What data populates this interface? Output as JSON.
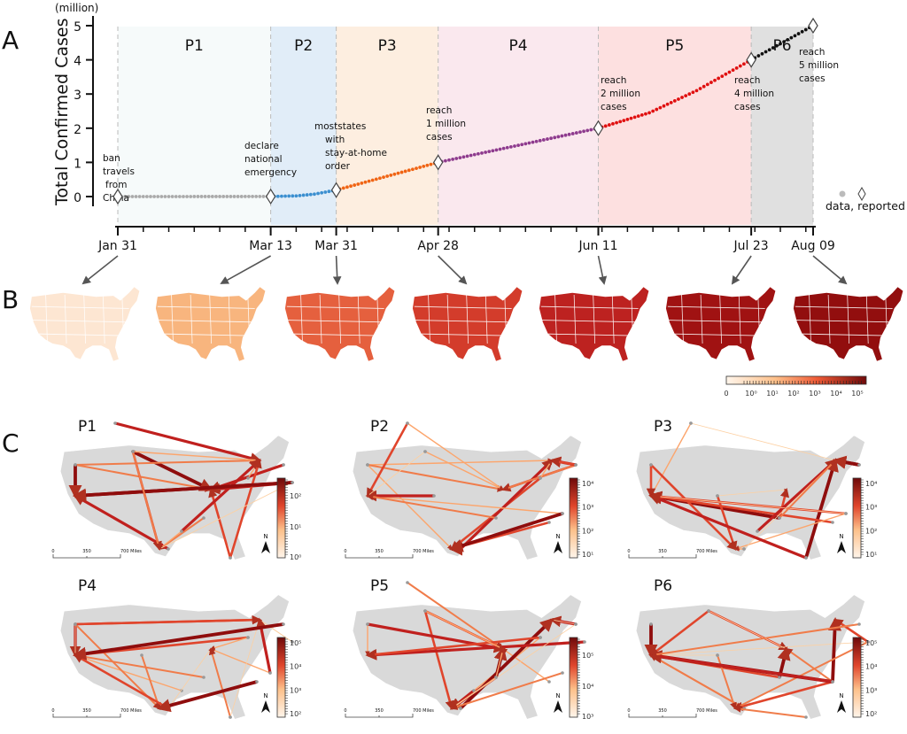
{
  "panels": {
    "a": "A",
    "b": "B",
    "c": "C"
  },
  "chart_data": {
    "type": "line",
    "ylabel": "Total Confirmed Cases",
    "yunit": "(million)",
    "ylim": [
      0,
      5
    ],
    "yticks": [
      "0",
      "1",
      "2",
      "3",
      "4",
      "5"
    ],
    "xtick_labels": [
      "Jan 31",
      "Mar 13",
      "Mar 31",
      "Apr 28",
      "Jun 11",
      "Jul 23",
      "Aug 09"
    ],
    "periods": [
      {
        "label": "P1",
        "start": "Jan 31",
        "end": "Mar 13",
        "bg": "#f6fafa",
        "color": "#aaaaaa"
      },
      {
        "label": "P2",
        "start": "Mar 13",
        "end": "Mar 31",
        "bg": "#e1edf8",
        "color": "#3b8fd0"
      },
      {
        "label": "P3",
        "start": "Mar 31",
        "end": "Apr 28",
        "bg": "#fdeee0",
        "color": "#f06414"
      },
      {
        "label": "P4",
        "start": "Apr 28",
        "end": "Jun 11",
        "bg": "#fae8ee",
        "color": "#8e3b8e"
      },
      {
        "label": "P5",
        "start": "Jun 11",
        "end": "Jul 23",
        "bg": "#fde0e0",
        "color": "#e01010"
      },
      {
        "label": "P6",
        "start": "Jul 23",
        "end": "Aug 09",
        "bg": "#e0e0e0",
        "color": "#111111"
      }
    ],
    "reported": [
      {
        "date": "Jan 31",
        "value": 0,
        "note": [
          "ban",
          "travels",
          "from",
          "China"
        ]
      },
      {
        "date": "Mar 13",
        "value": 0.002,
        "note": [
          "declare",
          "national",
          "emergency"
        ]
      },
      {
        "date": "Mar 31",
        "value": 0.19,
        "note": [
          "moststates",
          "with",
          "stay-at-home",
          "order"
        ]
      },
      {
        "date": "Apr 28",
        "value": 1.0,
        "note": [
          "reach",
          "1 million",
          "cases"
        ]
      },
      {
        "date": "Jun 11",
        "value": 2.0,
        "note": [
          "reach",
          "2 million",
          "cases"
        ]
      },
      {
        "date": "Jul 23",
        "value": 4.0,
        "note": [
          "reach",
          "4 million",
          "cases"
        ]
      },
      {
        "date": "Aug 09",
        "value": 5.0,
        "note": [
          "reach",
          "5 million",
          "cases"
        ]
      }
    ],
    "data": [
      {
        "date": "Jan 31",
        "value": 0
      },
      {
        "date": "Mar 13",
        "value": 0.002
      },
      {
        "date": "Mar 20",
        "value": 0.02
      },
      {
        "date": "Mar 25",
        "value": 0.07
      },
      {
        "date": "Mar 31",
        "value": 0.19
      },
      {
        "date": "Apr 28",
        "value": 1.0
      },
      {
        "date": "Jun 11",
        "value": 2.0
      },
      {
        "date": "Jun 25",
        "value": 2.45
      },
      {
        "date": "Jul 08",
        "value": 3.1
      },
      {
        "date": "Jul 23",
        "value": 4.0
      },
      {
        "date": "Aug 09",
        "value": 5.0
      }
    ],
    "legend": {
      "text": "data, reported",
      "position": "right"
    }
  },
  "choropleth": {
    "dates": [
      "Jan 31",
      "Mar 13",
      "Mar 31",
      "Apr 28",
      "Jun 11",
      "Jul 23",
      "Aug 09"
    ],
    "fill_colors": [
      "#fde6d2",
      "#f8b57e",
      "#e5603e",
      "#d33c2b",
      "#bd2220",
      "#a01212",
      "#920e0e"
    ],
    "colorbar_labels": [
      "0",
      "10⁰",
      "10¹",
      "10²",
      "10³",
      "10⁴",
      "10⁵"
    ]
  },
  "flow_maps": [
    {
      "label": "P1",
      "colorbar_labels": [
        "10²",
        "10¹",
        "10⁰"
      ]
    },
    {
      "label": "P2",
      "colorbar_labels": [
        "10⁴",
        "10³",
        "10²",
        "10¹"
      ]
    },
    {
      "label": "P3",
      "colorbar_labels": [
        "10⁴",
        "10³",
        "10²",
        "10¹"
      ]
    },
    {
      "label": "P4",
      "colorbar_labels": [
        "10⁵",
        "10⁴",
        "10³",
        "10²"
      ]
    },
    {
      "label": "P5",
      "colorbar_labels": [
        "10⁵",
        "10⁴",
        "10³"
      ]
    },
    {
      "label": "P6",
      "colorbar_labels": [
        "10⁵",
        "10⁴",
        "10³",
        "10²"
      ]
    }
  ],
  "scale_bar": {
    "ticks": [
      "0",
      "350",
      "700 Miles"
    ],
    "north": "N"
  }
}
